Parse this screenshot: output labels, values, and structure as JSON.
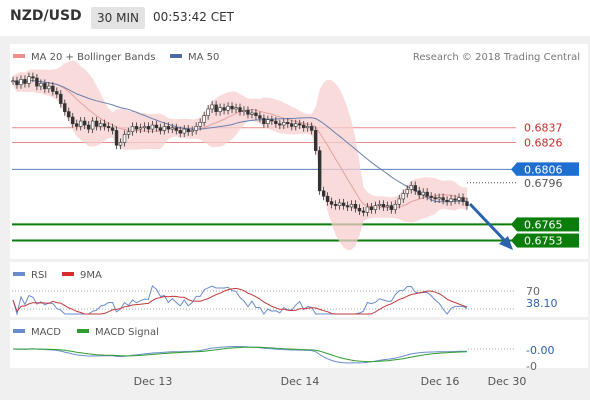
{
  "header": {
    "pair": "NZD/USD",
    "timeframe": "30 MIN",
    "time": "00:53:42 CET"
  },
  "legend": {
    "bb": "MA 20 + Bollinger Bands",
    "ma50": "MA 50",
    "credit": "Research © 2018 Trading Central"
  },
  "rsi_legend": {
    "rsi": "RSI",
    "ma": "9MA"
  },
  "macd_legend": {
    "macd": "MACD",
    "signal": "MACD Signal"
  },
  "colors": {
    "bb": "#ef8f8f",
    "ma50": "#4a6aa3",
    "rsi": "#6a8ccf",
    "rsi_ma": "#d62b2b",
    "macd": "#6a8ccf",
    "signal": "#2e9e2e",
    "support": "#0a7d0a",
    "resistance": "#e58a8a",
    "current": "#1f6fd1"
  },
  "chart_data": {
    "type": "candlestick",
    "x_ticks": [
      "Dec 13",
      "Dec 14",
      "Dec 16",
      "Dec 30"
    ],
    "y_range": [
      0.674,
      0.688
    ],
    "closes": [
      0.6872,
      0.6869,
      0.6873,
      0.687,
      0.6875,
      0.6874,
      0.6868,
      0.687,
      0.6866,
      0.6868,
      0.6864,
      0.6862,
      0.6855,
      0.6849,
      0.6845,
      0.684,
      0.6838,
      0.6842,
      0.6839,
      0.6836,
      0.6842,
      0.6838,
      0.684,
      0.6838,
      0.6837,
      0.6835,
      0.6824,
      0.6826,
      0.6832,
      0.6834,
      0.6838,
      0.6836,
      0.6837,
      0.6838,
      0.6836,
      0.6839,
      0.6837,
      0.6835,
      0.6838,
      0.6836,
      0.6837,
      0.6835,
      0.6833,
      0.6836,
      0.6834,
      0.6835,
      0.6838,
      0.6841,
      0.6846,
      0.6851,
      0.6854,
      0.6849,
      0.6852,
      0.685,
      0.6853,
      0.6851,
      0.6852,
      0.6849,
      0.685,
      0.6847,
      0.6848,
      0.6846,
      0.6844,
      0.684,
      0.6843,
      0.6842,
      0.684,
      0.6839,
      0.6841,
      0.684,
      0.6838,
      0.684,
      0.6839,
      0.6837,
      0.6838,
      0.6835,
      0.682,
      0.679,
      0.6786,
      0.6782,
      0.678,
      0.6779,
      0.6781,
      0.6779,
      0.6778,
      0.678,
      0.6777,
      0.6775,
      0.6774,
      0.6778,
      0.6776,
      0.6779,
      0.678,
      0.6778,
      0.6779,
      0.6776,
      0.678,
      0.6784,
      0.6788,
      0.6791,
      0.6794,
      0.679,
      0.6787,
      0.6789,
      0.6786,
      0.6785,
      0.6784,
      0.6785,
      0.6783,
      0.6782,
      0.6784,
      0.6783,
      0.6785,
      0.6782,
      0.6779
    ],
    "levels": {
      "resistance": [
        0.6837,
        0.6826
      ],
      "current": 0.6806,
      "last": 0.6796,
      "support": [
        0.6765,
        0.6753
      ]
    },
    "rsi": {
      "labels": [
        "70",
        "38.10"
      ]
    },
    "macd": {
      "labels": [
        "-0.00",
        "-0"
      ]
    }
  }
}
